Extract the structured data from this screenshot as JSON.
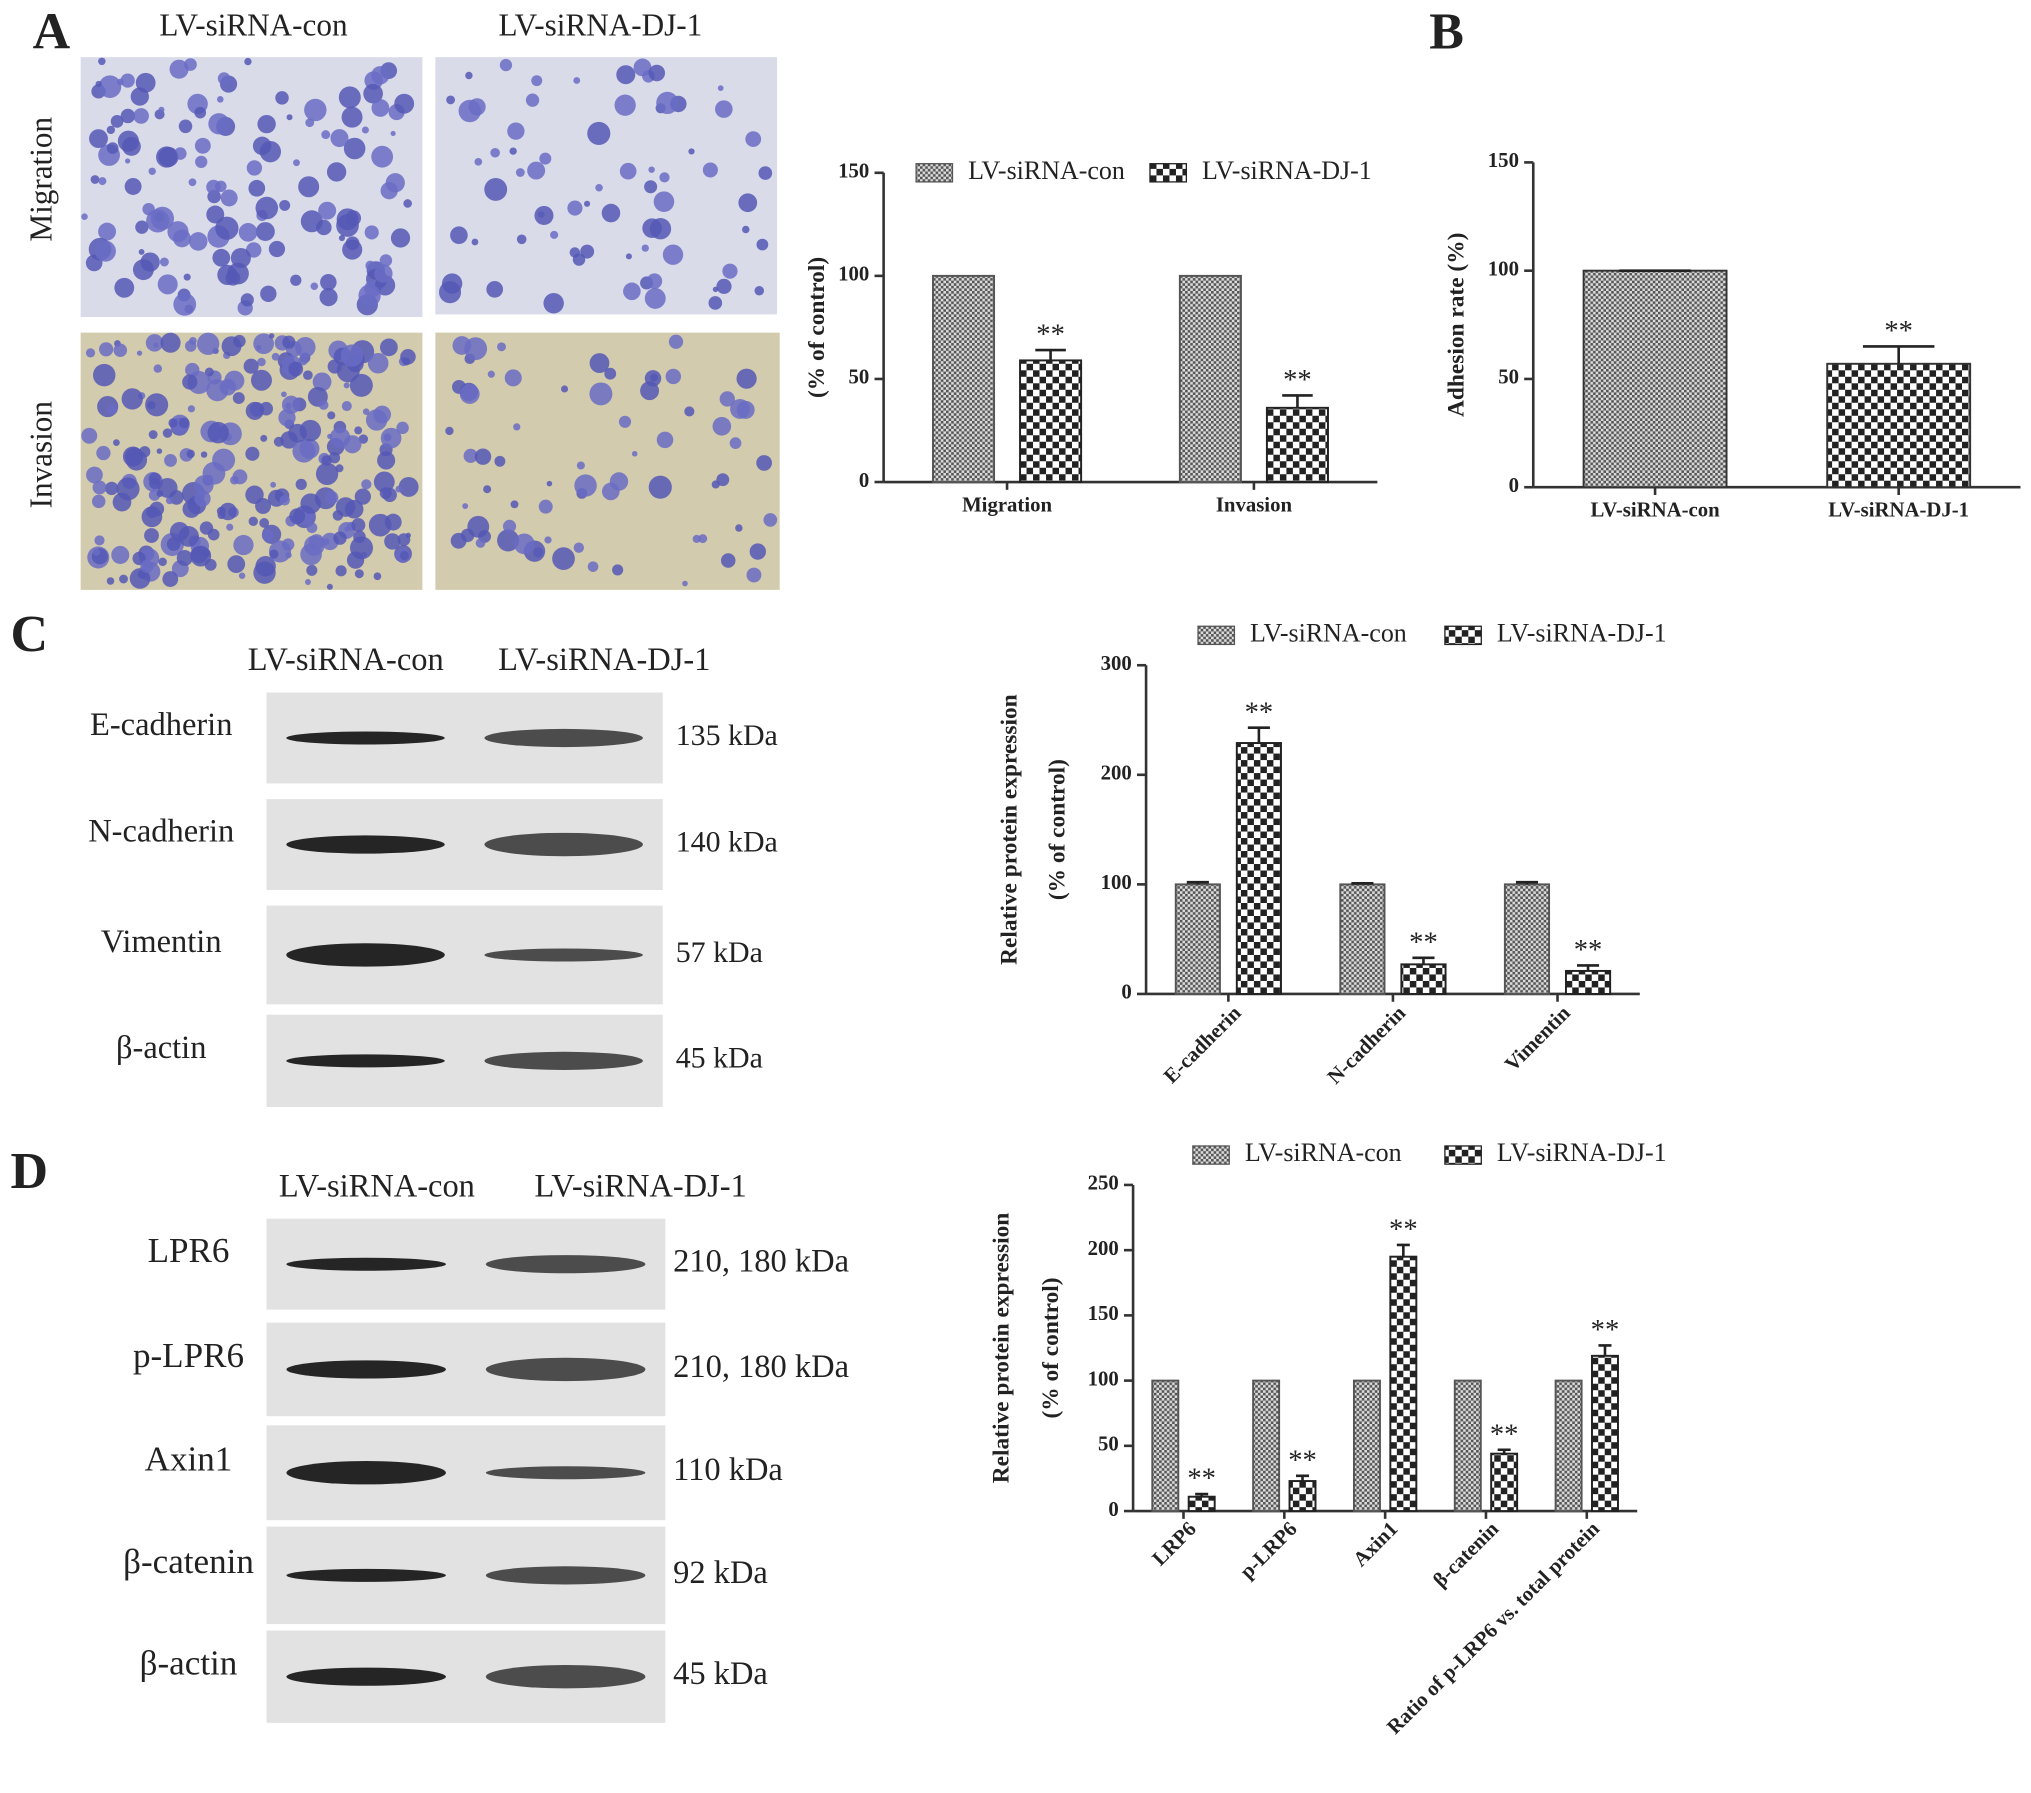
{
  "panels": {
    "A": "A",
    "B": "B",
    "C": "C",
    "D": "D"
  },
  "micrographs": {
    "columns": [
      "LV-siRNA-con",
      "LV-siRNA-DJ-1"
    ],
    "rows": [
      "Migration",
      "Invasion"
    ]
  },
  "blot_c": {
    "columns": [
      "LV-siRNA-con",
      "LV-siRNA-DJ-1"
    ],
    "rows": [
      {
        "label": "E-cadherin",
        "size": "135 kDa"
      },
      {
        "label": "N-cadherin",
        "size": "140 kDa"
      },
      {
        "label": "Vimentin",
        "size": "57 kDa"
      },
      {
        "label": "β-actin",
        "size": "45 kDa"
      }
    ]
  },
  "blot_d": {
    "columns": [
      "LV-siRNA-con",
      "LV-siRNA-DJ-1"
    ],
    "rows": [
      {
        "label": "LPR6",
        "size": "210, 180 kDa"
      },
      {
        "label": "p-LPR6",
        "size": "210, 180 kDa"
      },
      {
        "label": "Axin1",
        "size": "110 kDa"
      },
      {
        "label": "β-catenin",
        "size": "92 kDa"
      },
      {
        "label": "β-actin",
        "size": "45 kDa"
      }
    ]
  },
  "chart_data": [
    {
      "type": "bar",
      "ylabel": [
        "(% of control)"
      ],
      "categories": [
        "Migration",
        "Invasion"
      ],
      "ylim": [
        0,
        150
      ],
      "yticks": [
        0,
        50,
        100,
        150
      ],
      "legend": "top",
      "series": [
        {
          "name": "LV-siRNA-con",
          "color": "#555555",
          "values": [
            100,
            100
          ]
        },
        {
          "name": "LV-siRNA-DJ-1",
          "color": "#222222",
          "values": [
            59,
            36
          ],
          "errors": [
            5,
            6
          ],
          "annotations": [
            "**",
            "**"
          ]
        }
      ]
    },
    {
      "type": "bar",
      "ylabel": [
        "Adhesion rate (%)"
      ],
      "categories": [
        "LV-siRNA-con",
        "LV-siRNA-DJ-1"
      ],
      "ylim": [
        0,
        150
      ],
      "yticks": [
        0,
        50,
        100,
        150
      ],
      "series": [
        {
          "color": "#333333",
          "values": [
            100,
            57
          ],
          "errors": [
            0,
            8
          ],
          "annotations": [
            null,
            "**"
          ]
        }
      ]
    },
    {
      "type": "bar",
      "ylabel": [
        "Relative protein expression",
        "(% of control)"
      ],
      "categories": [
        "E-cadherin",
        "N-cadherin",
        "Vimentin"
      ],
      "ylim": [
        0,
        300
      ],
      "yticks": [
        0,
        100,
        200,
        300
      ],
      "legend": "top",
      "series": [
        {
          "name": "LV-siRNA-con",
          "color": "#555555",
          "values": [
            100,
            100,
            100
          ],
          "errors": [
            2,
            1,
            2
          ]
        },
        {
          "name": "LV-siRNA-DJ-1",
          "color": "#222222",
          "values": [
            229,
            27,
            21
          ],
          "errors": [
            14,
            6,
            5
          ],
          "annotations": [
            "**",
            "**",
            "**"
          ]
        }
      ]
    },
    {
      "type": "bar",
      "ylabel": [
        "Relative protein expression",
        "(% of control)"
      ],
      "categories": [
        "LRP6",
        "p-LRP6",
        "Axin1",
        "β-catenin",
        "Ratio of p-LRP6 vs. total protein"
      ],
      "ylim": [
        0,
        250
      ],
      "yticks": [
        0,
        50,
        100,
        150,
        200,
        250
      ],
      "legend": "top",
      "series": [
        {
          "name": "LV-siRNA-con",
          "color": "#555555",
          "values": [
            100,
            100,
            100,
            100,
            100
          ]
        },
        {
          "name": "LV-siRNA-DJ-1",
          "color": "#222222",
          "values": [
            11,
            23,
            195,
            44,
            119
          ],
          "errors": [
            2,
            4,
            9,
            3,
            8
          ],
          "annotations": [
            "**",
            "**",
            "**",
            "**",
            "**"
          ]
        }
      ]
    }
  ]
}
